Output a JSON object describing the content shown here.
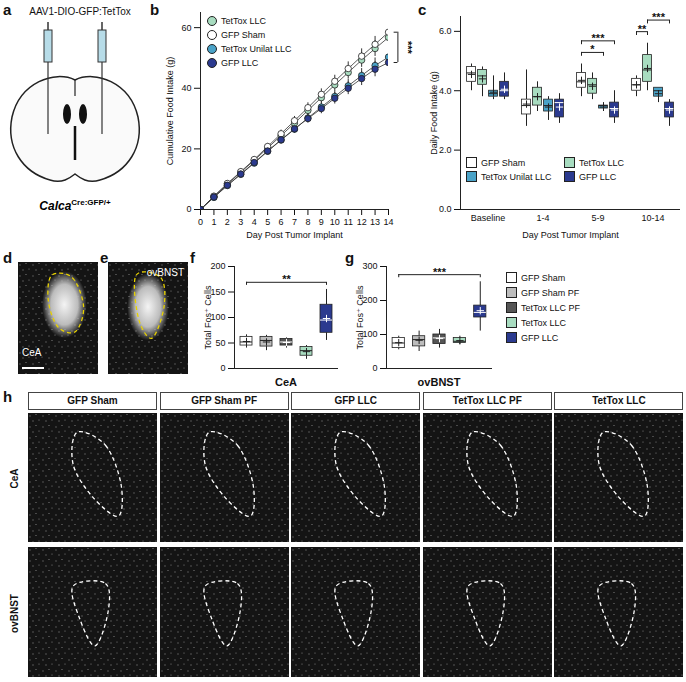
{
  "figure": {
    "letters": [
      "a",
      "b",
      "c",
      "d",
      "e",
      "f",
      "g",
      "h"
    ],
    "panel_a": {
      "construct": "AAV1-DIO-GFP:TetTox",
      "genotype": "Calca",
      "genotype_superscript": "Cre:GFP/+"
    },
    "panel_d": {
      "region": "CeA"
    },
    "panel_e": {
      "region": "ovBNST"
    },
    "panel_h": {
      "columns": [
        "GFP Sham",
        "GFP Sham PF",
        "GFP LLC",
        "TetTox LLC PF",
        "TetTox LLC"
      ],
      "rows": [
        "CeA",
        "ovBNST"
      ]
    }
  },
  "chart_data": [
    {
      "type": "line",
      "x_label": "Day Post Tumor Implant",
      "y_label": "Cumulative Food Intake (g)",
      "x": [
        0,
        1,
        2,
        3,
        4,
        5,
        6,
        7,
        8,
        9,
        10,
        11,
        12,
        13,
        14
      ],
      "xlim": [
        0,
        14
      ],
      "xticks": [
        0,
        1,
        2,
        3,
        4,
        5,
        6,
        7,
        8,
        9,
        10,
        11,
        12,
        13,
        14
      ],
      "ylim": [
        0,
        65
      ],
      "yticks": [
        0,
        20,
        40,
        60
      ],
      "marker": "circle",
      "legend": "top-left",
      "series": [
        {
          "name": "TetTox LLC",
          "color": "#a8dcc0",
          "values": [
            0,
            4.3,
            8.4,
            12.3,
            16.2,
            20.3,
            24.4,
            28.5,
            32.7,
            36.9,
            41.1,
            45.2,
            49.3,
            53.1,
            56.8
          ],
          "errors": [
            0,
            0.3,
            0.5,
            0.7,
            0.9,
            1.0,
            1.2,
            1.4,
            1.6,
            1.8,
            2.0,
            2.2,
            2.4,
            2.6,
            2.8
          ]
        },
        {
          "name": "GFP Sham",
          "color": "#ffffff",
          "values": [
            0,
            4.4,
            8.6,
            12.5,
            16.5,
            20.8,
            25.0,
            29.3,
            33.6,
            38.0,
            42.3,
            46.5,
            50.6,
            54.5,
            58.5
          ],
          "errors": [
            0,
            0.3,
            0.5,
            0.7,
            0.9,
            1.0,
            1.2,
            1.4,
            1.6,
            1.8,
            2.0,
            2.2,
            2.4,
            2.6,
            2.8
          ]
        },
        {
          "name": "TetTox Unilat LLC",
          "color": "#4aa3c8",
          "values": [
            0,
            4.0,
            7.9,
            11.6,
            15.3,
            19.2,
            22.9,
            26.5,
            30.2,
            33.8,
            37.3,
            40.8,
            44.2,
            47.5,
            50.3
          ],
          "errors": [
            0,
            0.2,
            0.4,
            0.6,
            0.8,
            0.9,
            1.1,
            1.3,
            1.5,
            1.7,
            1.9,
            2.1,
            2.3,
            2.5,
            2.7
          ]
        },
        {
          "name": "GFP LLC",
          "color": "#2b3a8f",
          "values": [
            0,
            4.1,
            8.0,
            11.7,
            15.5,
            19.3,
            23.0,
            26.6,
            30.0,
            33.3,
            36.7,
            40.0,
            43.2,
            46.3,
            48.5
          ],
          "errors": [
            0,
            0.2,
            0.4,
            0.6,
            0.8,
            0.9,
            1.1,
            1.3,
            1.5,
            1.7,
            1.9,
            2.1,
            2.3,
            2.5,
            2.7
          ]
        }
      ],
      "annotations": [
        {
          "from": "GFP Sham",
          "to": "GFP LLC",
          "label": "***"
        }
      ]
    },
    {
      "type": "box",
      "x_label": "Day Post Tumor Implant",
      "y_label": "Daily Food Intake (g)",
      "categories": [
        "Baseline",
        "1-4",
        "5-9",
        "10-14"
      ],
      "ylim": [
        0,
        6.5
      ],
      "yticks": [
        0,
        2,
        4,
        6
      ],
      "legend": "bottom",
      "series": [
        {
          "name": "GFP Sham",
          "color": "#ffffff",
          "values": [
            {
              "min": 4.0,
              "q1": 4.3,
              "median": 4.6,
              "q3": 4.8,
              "max": 4.9,
              "mean": 4.55
            },
            {
              "min": 2.8,
              "q1": 3.2,
              "median": 3.5,
              "q3": 3.7,
              "max": 4.7,
              "mean": 3.55
            },
            {
              "min": 3.8,
              "q1": 4.1,
              "median": 4.3,
              "q3": 4.6,
              "max": 4.9,
              "mean": 4.35
            },
            {
              "min": 3.8,
              "q1": 4.0,
              "median": 4.2,
              "q3": 4.4,
              "max": 4.5,
              "mean": 4.2
            }
          ]
        },
        {
          "name": "TetTox LLC",
          "color": "#a8dcc0",
          "values": [
            {
              "min": 3.8,
              "q1": 4.2,
              "median": 4.5,
              "q3": 4.7,
              "max": 4.8,
              "mean": 4.4
            },
            {
              "min": 3.3,
              "q1": 3.5,
              "median": 3.8,
              "q3": 4.1,
              "max": 4.3,
              "mean": 3.8
            },
            {
              "min": 3.7,
              "q1": 3.9,
              "median": 4.2,
              "q3": 4.4,
              "max": 4.6,
              "mean": 4.15
            },
            {
              "min": 4.0,
              "q1": 4.3,
              "median": 4.7,
              "q3": 5.2,
              "max": 5.6,
              "mean": 4.75
            }
          ]
        },
        {
          "name": "TetTox Unilat LLC",
          "color": "#4aa3c8",
          "values": [
            {
              "min": 3.7,
              "q1": 3.8,
              "median": 3.9,
              "q3": 4.0,
              "max": 4.5,
              "mean": 3.95
            },
            {
              "min": 3.0,
              "q1": 3.3,
              "median": 3.5,
              "q3": 3.7,
              "max": 3.8,
              "mean": 3.45
            },
            {
              "min": 3.3,
              "q1": 3.4,
              "median": 3.5,
              "q3": 3.5,
              "max": 3.6,
              "mean": 3.45
            },
            {
              "min": 3.6,
              "q1": 3.8,
              "median": 4.0,
              "q3": 4.1,
              "max": 4.1,
              "mean": 3.9
            }
          ]
        },
        {
          "name": "GFP LLC",
          "color": "#2b3a8f",
          "values": [
            {
              "min": 3.7,
              "q1": 3.8,
              "median": 4.0,
              "q3": 4.3,
              "max": 4.6,
              "mean": 4.05
            },
            {
              "min": 2.9,
              "q1": 3.1,
              "median": 3.6,
              "q3": 3.7,
              "max": 3.9,
              "mean": 3.45
            },
            {
              "min": 2.9,
              "q1": 3.1,
              "median": 3.4,
              "q3": 3.6,
              "max": 4.0,
              "mean": 3.35
            },
            {
              "min": 2.8,
              "q1": 3.1,
              "median": 3.4,
              "q3": 3.6,
              "max": 3.7,
              "mean": 3.35
            }
          ]
        }
      ],
      "annotations": [
        {
          "category": "5-9",
          "from": "GFP Sham",
          "to": "TetTox Unilat LLC",
          "label": "*"
        },
        {
          "category": "5-9",
          "from": "GFP Sham",
          "to": "GFP LLC",
          "label": "***"
        },
        {
          "category": "10-14",
          "from": "GFP Sham",
          "to": "TetTox LLC",
          "label": "**"
        },
        {
          "category": "10-14",
          "from": "TetTox LLC",
          "to": "GFP LLC",
          "label": "***"
        }
      ]
    },
    {
      "type": "box",
      "x_label": "CeA",
      "y_label": "Total Fos⁺ Cells",
      "tick_labels": "y",
      "categories": [
        "GFP Sham",
        "GFP Sham PF",
        "TetTox LLC PF",
        "TetTox LLC",
        "GFP LLC"
      ],
      "colors": [
        "#ffffff",
        "#bdbdbd",
        "#555555",
        "#a8dcc0",
        "#2b3a8f"
      ],
      "ylim": [
        0,
        200
      ],
      "yticks": [
        0,
        50,
        100,
        150,
        200
      ],
      "values": [
        {
          "min": 40,
          "q1": 45,
          "median": 52,
          "q3": 62,
          "max": 66,
          "mean": 53
        },
        {
          "min": 35,
          "q1": 43,
          "median": 55,
          "q3": 62,
          "max": 65,
          "mean": 52
        },
        {
          "min": 40,
          "q1": 45,
          "median": 52,
          "q3": 58,
          "max": 60,
          "mean": 51
        },
        {
          "min": 18,
          "q1": 25,
          "median": 35,
          "q3": 42,
          "max": 45,
          "mean": 33
        },
        {
          "min": 55,
          "q1": 70,
          "median": 95,
          "q3": 125,
          "max": 155,
          "mean": 98
        }
      ],
      "annotations": [
        {
          "from": "GFP Sham",
          "to": "GFP LLC",
          "label": "**"
        }
      ]
    },
    {
      "type": "box",
      "x_label": "ovBNST",
      "y_label": "Total Fos⁺ Cells",
      "tick_labels": "y",
      "legend": "right",
      "categories": [
        "GFP Sham",
        "GFP Sham PF",
        "TetTox LLC PF",
        "TetTox LLC",
        "GFP LLC"
      ],
      "colors": [
        "#ffffff",
        "#bdbdbd",
        "#555555",
        "#a8dcc0",
        "#2b3a8f"
      ],
      "ylim": [
        0,
        300
      ],
      "yticks": [
        0,
        100,
        200,
        300
      ],
      "values": [
        {
          "min": 55,
          "q1": 60,
          "median": 75,
          "q3": 90,
          "max": 95,
          "mean": 76
        },
        {
          "min": 50,
          "q1": 65,
          "median": 85,
          "q3": 95,
          "max": 110,
          "mean": 83
        },
        {
          "min": 60,
          "q1": 72,
          "median": 90,
          "q3": 100,
          "max": 115,
          "mean": 88
        },
        {
          "min": 70,
          "q1": 75,
          "median": 80,
          "q3": 90,
          "max": 95,
          "mean": 82
        },
        {
          "min": 110,
          "q1": 150,
          "median": 165,
          "q3": 185,
          "max": 255,
          "mean": 170
        }
      ],
      "annotations": [
        {
          "from": "GFP Sham",
          "to": "GFP LLC",
          "label": "***"
        }
      ]
    }
  ]
}
